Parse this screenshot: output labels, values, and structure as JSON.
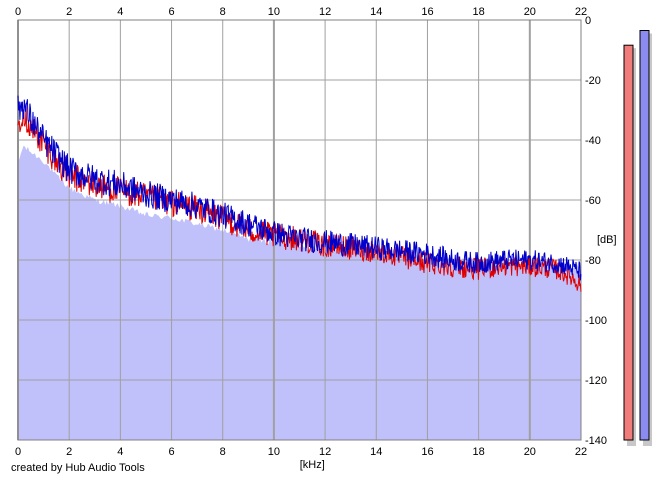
{
  "footer": {
    "credit": "created by Hub Audio Tools"
  },
  "chart_data": {
    "type": "area",
    "title": "",
    "xlabel": "[kHz]",
    "ylabel": "[dB]",
    "xlim": [
      0,
      22
    ],
    "ylim": [
      -140,
      0
    ],
    "x_ticks": [
      0,
      2,
      4,
      6,
      8,
      10,
      12,
      14,
      16,
      18,
      20,
      22
    ],
    "y_ticks": [
      0,
      -20,
      -40,
      -60,
      -80,
      -100,
      -120,
      -140
    ],
    "y_tick_labels": [
      "0",
      "-20",
      "-40",
      "-60",
      "-80",
      "-100",
      "-120",
      "-140"
    ],
    "grid": true,
    "colors": {
      "fill": "#c0c0fb",
      "left_channel": "#e00000",
      "right_channel": "#0000cc",
      "grid": "#a0a0a0",
      "left_meter": "#f07c7c",
      "right_meter": "#8c8cf0"
    },
    "envelope": {
      "x": [
        0,
        0.2,
        0.5,
        1,
        1.5,
        2,
        3,
        4,
        5,
        6,
        7,
        8,
        9,
        10,
        11,
        12,
        13,
        14,
        15,
        16,
        17,
        18,
        19,
        20,
        21,
        21.5,
        22
      ],
      "y": [
        -48,
        -42,
        -44,
        -47,
        -52,
        -56,
        -60,
        -62,
        -65,
        -66,
        -68,
        -70,
        -73,
        -74,
        -75,
        -77,
        -77,
        -78,
        -79,
        -79,
        -80,
        -80,
        -80,
        -81,
        -81,
        -82,
        -82
      ]
    },
    "series": [
      {
        "channel": "left",
        "x": [
          0,
          0.2,
          0.5,
          1,
          1.5,
          2,
          3,
          4,
          5,
          6,
          7,
          8,
          9,
          10,
          11,
          12,
          13,
          14,
          15,
          16,
          17,
          18,
          19,
          20,
          21,
          21.5,
          22
        ],
        "y": [
          -34,
          -30,
          -36,
          -41,
          -47,
          -52,
          -55,
          -57,
          -59,
          -61,
          -63,
          -66,
          -70,
          -72,
          -73,
          -75,
          -76,
          -77,
          -79,
          -81,
          -82,
          -83,
          -82,
          -82,
          -83,
          -85,
          -88
        ]
      },
      {
        "channel": "right",
        "x": [
          0,
          0.2,
          0.5,
          1,
          1.5,
          2,
          3,
          4,
          5,
          6,
          7,
          8,
          9,
          10,
          11,
          12,
          13,
          14,
          15,
          16,
          17,
          18,
          19,
          20,
          21,
          21.5,
          22
        ],
        "y": [
          -30,
          -28,
          -33,
          -40,
          -45,
          -50,
          -53,
          -55,
          -58,
          -60,
          -62,
          -65,
          -68,
          -71,
          -73,
          -74,
          -75,
          -76,
          -77,
          -78,
          -80,
          -81,
          -80,
          -80,
          -81,
          -82,
          -84
        ]
      }
    ],
    "meters": {
      "left_level": 0.94,
      "right_level": 0.975
    }
  }
}
